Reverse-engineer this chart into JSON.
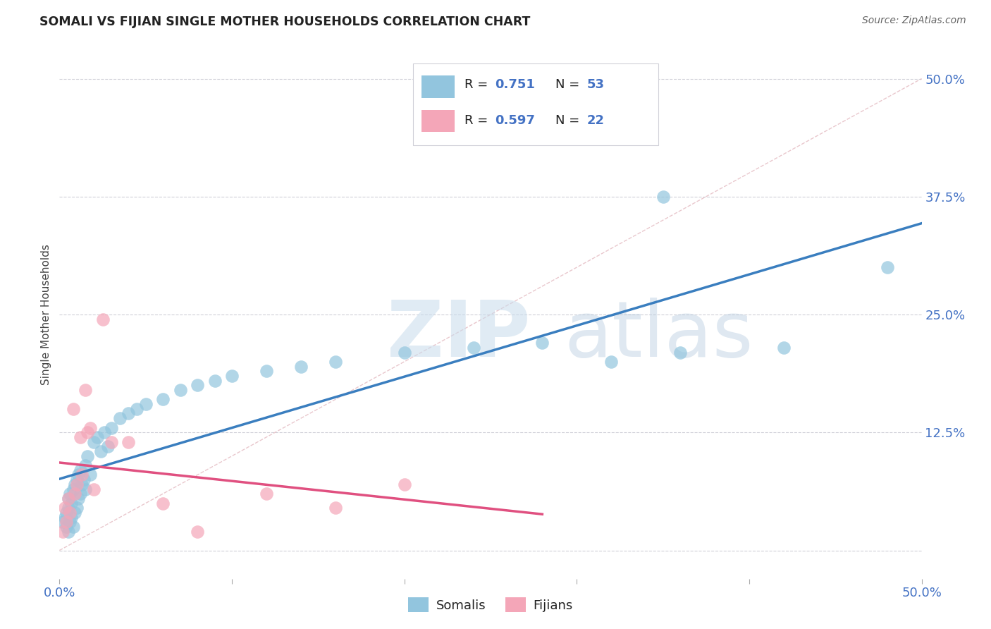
{
  "title": "SOMALI VS FIJIAN SINGLE MOTHER HOUSEHOLDS CORRELATION CHART",
  "source": "Source: ZipAtlas.com",
  "ylabel": "Single Mother Households",
  "xlim": [
    0.0,
    0.5
  ],
  "ylim": [
    -0.03,
    0.53
  ],
  "somali_R": 0.751,
  "somali_N": 53,
  "fijian_R": 0.597,
  "fijian_N": 22,
  "somali_color": "#92c5de",
  "fijian_color": "#f4a6b8",
  "blue_line_color": "#3a7ebf",
  "pink_line_color": "#e05080",
  "diagonal_color": "#c8c8d0",
  "somali_x": [
    0.002,
    0.003,
    0.004,
    0.004,
    0.005,
    0.005,
    0.005,
    0.006,
    0.006,
    0.007,
    0.007,
    0.008,
    0.008,
    0.009,
    0.009,
    0.01,
    0.01,
    0.011,
    0.011,
    0.012,
    0.012,
    0.013,
    0.014,
    0.015,
    0.015,
    0.016,
    0.018,
    0.02,
    0.022,
    0.024,
    0.026,
    0.028,
    0.03,
    0.035,
    0.04,
    0.045,
    0.05,
    0.06,
    0.07,
    0.08,
    0.09,
    0.1,
    0.12,
    0.14,
    0.16,
    0.2,
    0.24,
    0.28,
    0.32,
    0.36,
    0.35,
    0.42,
    0.48
  ],
  "somali_y": [
    0.03,
    0.035,
    0.025,
    0.04,
    0.02,
    0.045,
    0.055,
    0.03,
    0.06,
    0.035,
    0.05,
    0.025,
    0.065,
    0.04,
    0.07,
    0.045,
    0.075,
    0.055,
    0.08,
    0.06,
    0.085,
    0.07,
    0.075,
    0.09,
    0.065,
    0.1,
    0.08,
    0.115,
    0.12,
    0.105,
    0.125,
    0.11,
    0.13,
    0.14,
    0.145,
    0.15,
    0.155,
    0.16,
    0.17,
    0.175,
    0.18,
    0.185,
    0.19,
    0.195,
    0.2,
    0.21,
    0.215,
    0.22,
    0.2,
    0.21,
    0.375,
    0.215,
    0.3
  ],
  "fijian_x": [
    0.002,
    0.003,
    0.004,
    0.005,
    0.006,
    0.008,
    0.009,
    0.01,
    0.012,
    0.013,
    0.015,
    0.016,
    0.018,
    0.02,
    0.025,
    0.03,
    0.04,
    0.06,
    0.08,
    0.12,
    0.16,
    0.2
  ],
  "fijian_y": [
    0.02,
    0.045,
    0.03,
    0.055,
    0.04,
    0.15,
    0.06,
    0.07,
    0.12,
    0.08,
    0.17,
    0.125,
    0.13,
    0.065,
    0.245,
    0.115,
    0.115,
    0.05,
    0.02,
    0.06,
    0.045,
    0.07
  ]
}
